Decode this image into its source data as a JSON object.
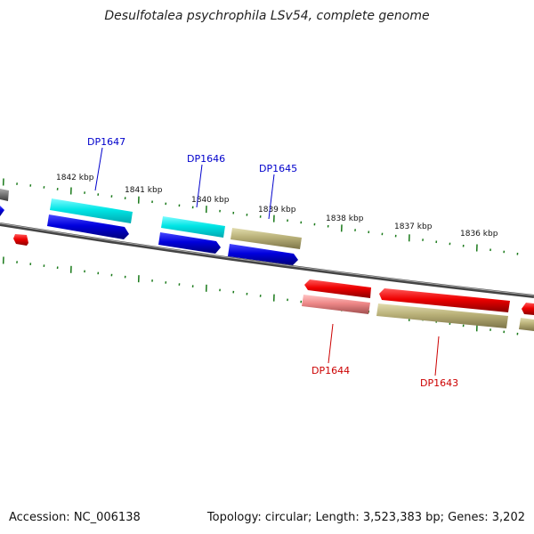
{
  "title": "Desulfotalea psychrophila LSv54, complete genome",
  "accession_label": "Accession: NC_006138",
  "summary": "Topology: circular; Length: 3,523,383 bp; Genes: 3,202",
  "colors": {
    "backbone": "#555555",
    "tick": "#1a7a1a",
    "forward_label": "#0000cc",
    "reverse_label": "#cc0000",
    "cyan_feature": "#00e5e5",
    "blue_feature": "#0000dd",
    "olive_feature": "#b8b078",
    "red_feature": "#ee0000",
    "pink_feature": "#ee8888",
    "gray_feature": "#777777"
  },
  "scale_labels": [
    "1842 kbp",
    "1841 kbp",
    "1840 kbp",
    "1839 kbp",
    "1838 kbp",
    "1837 kbp",
    "1836 kbp"
  ],
  "forward_genes": [
    "DP1647",
    "DP1646",
    "DP1645"
  ],
  "reverse_genes": [
    "DP1644",
    "DP1643"
  ]
}
